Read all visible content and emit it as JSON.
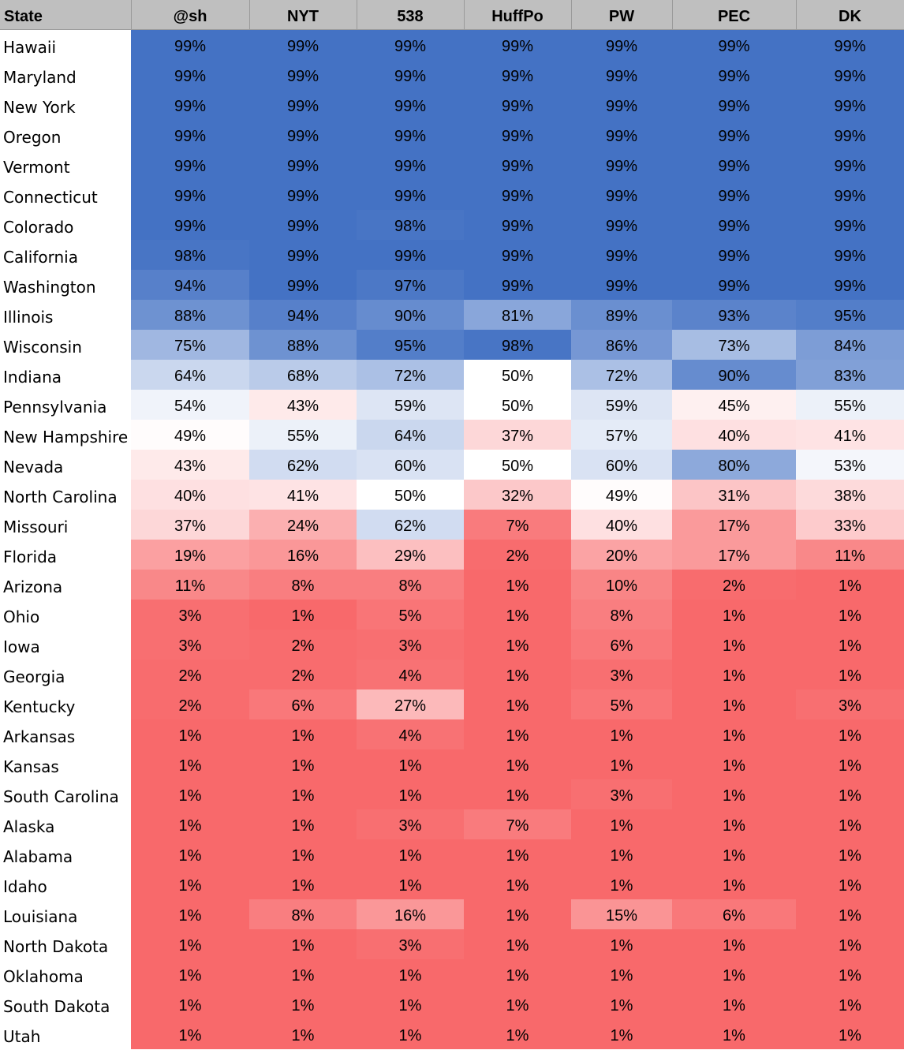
{
  "chart_data": {
    "type": "heatmap",
    "columns": [
      "State",
      "@sh",
      "NYT",
      "538",
      "HuffPo",
      "PW",
      "PEC",
      "DK"
    ],
    "value_format": "percent",
    "colors": {
      "high": "#4472c4",
      "mid": "#ffffff",
      "low": "#f8696b",
      "header": "#bfbfbf"
    },
    "rows": [
      {
        "state": "Hawaii",
        "values": [
          99,
          99,
          99,
          99,
          99,
          99,
          99
        ]
      },
      {
        "state": "Maryland",
        "values": [
          99,
          99,
          99,
          99,
          99,
          99,
          99
        ]
      },
      {
        "state": "New York",
        "values": [
          99,
          99,
          99,
          99,
          99,
          99,
          99
        ]
      },
      {
        "state": "Oregon",
        "values": [
          99,
          99,
          99,
          99,
          99,
          99,
          99
        ]
      },
      {
        "state": "Vermont",
        "values": [
          99,
          99,
          99,
          99,
          99,
          99,
          99
        ]
      },
      {
        "state": "Connecticut",
        "values": [
          99,
          99,
          99,
          99,
          99,
          99,
          99
        ]
      },
      {
        "state": "Colorado",
        "values": [
          99,
          99,
          98,
          99,
          99,
          99,
          99
        ]
      },
      {
        "state": "California",
        "values": [
          98,
          99,
          99,
          99,
          99,
          99,
          99
        ]
      },
      {
        "state": "Washington",
        "values": [
          94,
          99,
          97,
          99,
          99,
          99,
          99
        ]
      },
      {
        "state": "Illinois",
        "values": [
          88,
          94,
          90,
          81,
          89,
          93,
          95
        ]
      },
      {
        "state": "Wisconsin",
        "values": [
          75,
          88,
          95,
          98,
          86,
          73,
          84
        ]
      },
      {
        "state": "Indiana",
        "values": [
          64,
          68,
          72,
          50,
          72,
          90,
          83
        ]
      },
      {
        "state": "Pennsylvania",
        "values": [
          54,
          43,
          59,
          50,
          59,
          45,
          55
        ]
      },
      {
        "state": "New Hampshire",
        "values": [
          49,
          55,
          64,
          37,
          57,
          40,
          41
        ]
      },
      {
        "state": "Nevada",
        "values": [
          43,
          62,
          60,
          50,
          60,
          80,
          53
        ]
      },
      {
        "state": "North Carolina",
        "values": [
          40,
          41,
          50,
          32,
          49,
          31,
          38
        ]
      },
      {
        "state": "Missouri",
        "values": [
          37,
          24,
          62,
          7,
          40,
          17,
          33
        ]
      },
      {
        "state": "Florida",
        "values": [
          19,
          16,
          29,
          2,
          20,
          17,
          11
        ]
      },
      {
        "state": "Arizona",
        "values": [
          11,
          8,
          8,
          1,
          10,
          2,
          1
        ]
      },
      {
        "state": "Ohio",
        "values": [
          3,
          1,
          5,
          1,
          8,
          1,
          1
        ]
      },
      {
        "state": "Iowa",
        "values": [
          3,
          2,
          3,
          1,
          6,
          1,
          1
        ]
      },
      {
        "state": "Georgia",
        "values": [
          2,
          2,
          4,
          1,
          3,
          1,
          1
        ]
      },
      {
        "state": "Kentucky",
        "values": [
          2,
          6,
          27,
          1,
          5,
          1,
          3
        ]
      },
      {
        "state": "Arkansas",
        "values": [
          1,
          1,
          4,
          1,
          1,
          1,
          1
        ]
      },
      {
        "state": "Kansas",
        "values": [
          1,
          1,
          1,
          1,
          1,
          1,
          1
        ]
      },
      {
        "state": "South Carolina",
        "values": [
          1,
          1,
          1,
          1,
          3,
          1,
          1
        ]
      },
      {
        "state": "Alaska",
        "values": [
          1,
          1,
          3,
          7,
          1,
          1,
          1
        ]
      },
      {
        "state": "Alabama",
        "values": [
          1,
          1,
          1,
          1,
          1,
          1,
          1
        ]
      },
      {
        "state": "Idaho",
        "values": [
          1,
          1,
          1,
          1,
          1,
          1,
          1
        ]
      },
      {
        "state": "Louisiana",
        "values": [
          1,
          8,
          16,
          1,
          15,
          6,
          1
        ]
      },
      {
        "state": "North Dakota",
        "values": [
          1,
          1,
          3,
          1,
          1,
          1,
          1
        ]
      },
      {
        "state": "Oklahoma",
        "values": [
          1,
          1,
          1,
          1,
          1,
          1,
          1
        ]
      },
      {
        "state": "South Dakota",
        "values": [
          1,
          1,
          1,
          1,
          1,
          1,
          1
        ]
      },
      {
        "state": "Utah",
        "values": [
          1,
          1,
          1,
          1,
          1,
          1,
          1
        ]
      }
    ]
  }
}
